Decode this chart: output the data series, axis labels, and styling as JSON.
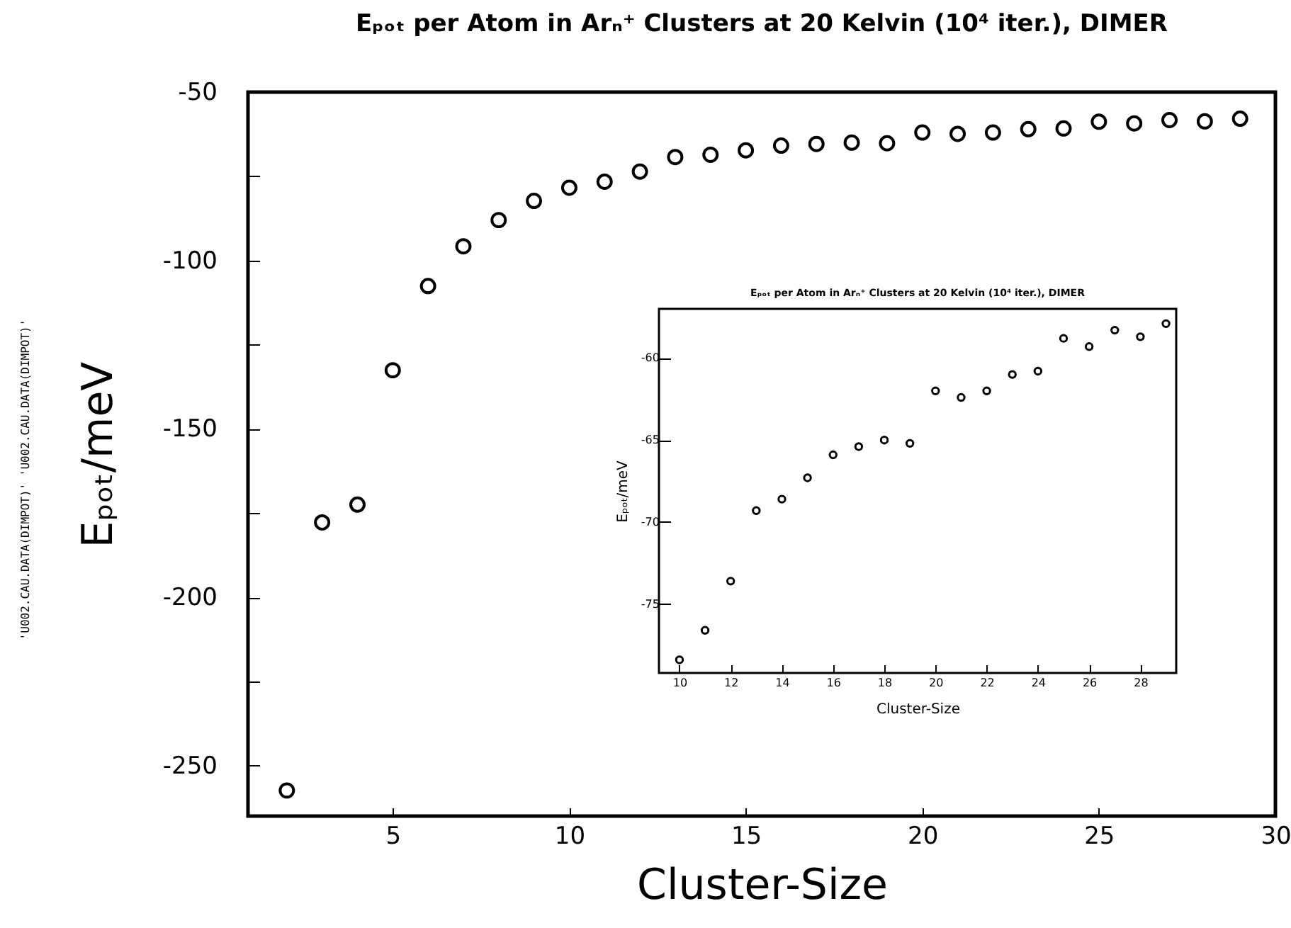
{
  "chart_data": [
    {
      "type": "scatter",
      "title": "Eₚₒₜ per Atom in Arₙ⁺ Clusters at 20 Kelvin (10⁴ iter.), DIMER",
      "xlabel": "Cluster-Size",
      "ylabel": "Eₚₒₜ/meV",
      "marker": "circle",
      "color": "#000000",
      "x": [
        2,
        3,
        4,
        5,
        6,
        7,
        8,
        9,
        10,
        11,
        12,
        13,
        14,
        15,
        16,
        17,
        18,
        19,
        20,
        21,
        22,
        23,
        24,
        25,
        26,
        27,
        28,
        29
      ],
      "values": [
        -257.4,
        -177.8,
        -172.5,
        -132.6,
        -107.6,
        -95.8,
        -88,
        -82.3,
        -78.4,
        -76.6,
        -73.6,
        -69.3,
        -68.6,
        -67.3,
        -65.9,
        -65.4,
        -65,
        -65.2,
        -62,
        -62.4,
        -62,
        -61,
        -60.8,
        -58.8,
        -59.3,
        -58.3,
        -58.7,
        -57.9
      ],
      "xlim": [
        0.9,
        30
      ],
      "xticks": [
        5,
        10,
        15,
        20,
        25,
        30
      ],
      "ylim": [
        -265,
        -50
      ],
      "yticks": [
        -250,
        {
          "value": -225,
          "label": null
        },
        -200,
        {
          "value": -175,
          "label": null
        },
        -150,
        {
          "value": -125,
          "label": null
        },
        -100,
        {
          "value": -75,
          "label": null
        },
        -50
      ],
      "annotations": [
        "'U002.CAU.DATA(DIMPOT)' 'U002.CAU.DATA(DIMPOT)'"
      ]
    },
    {
      "type": "scatter",
      "title": "Eₚₒₜ per Atom in Arₙ⁺ Clusters at 20 Kelvin (10⁴ iter.), DIMER",
      "xlabel": "Cluster-Size",
      "ylabel": "Eₚₒₜ/meV",
      "marker": "circle",
      "color": "#000000",
      "x": [
        10,
        11,
        12,
        13,
        14,
        15,
        16,
        17,
        18,
        19,
        20,
        21,
        22,
        23,
        24,
        25,
        26,
        27,
        28,
        29
      ],
      "values": [
        -78.4,
        -76.6,
        -73.6,
        -69.3,
        -68.6,
        -67.3,
        -65.9,
        -65.4,
        -65,
        -65.2,
        -62,
        -62.4,
        -62,
        -61,
        -60.8,
        -58.8,
        -59.3,
        -58.3,
        -58.7,
        -57.9
      ],
      "xlim": [
        9.2,
        29.4
      ],
      "xticks": [
        10,
        12,
        14,
        16,
        18,
        20,
        22,
        24,
        26,
        28
      ],
      "ylim": [
        -79.2,
        -57
      ],
      "yticks": [
        -75,
        -70,
        -65,
        -60
      ]
    }
  ]
}
